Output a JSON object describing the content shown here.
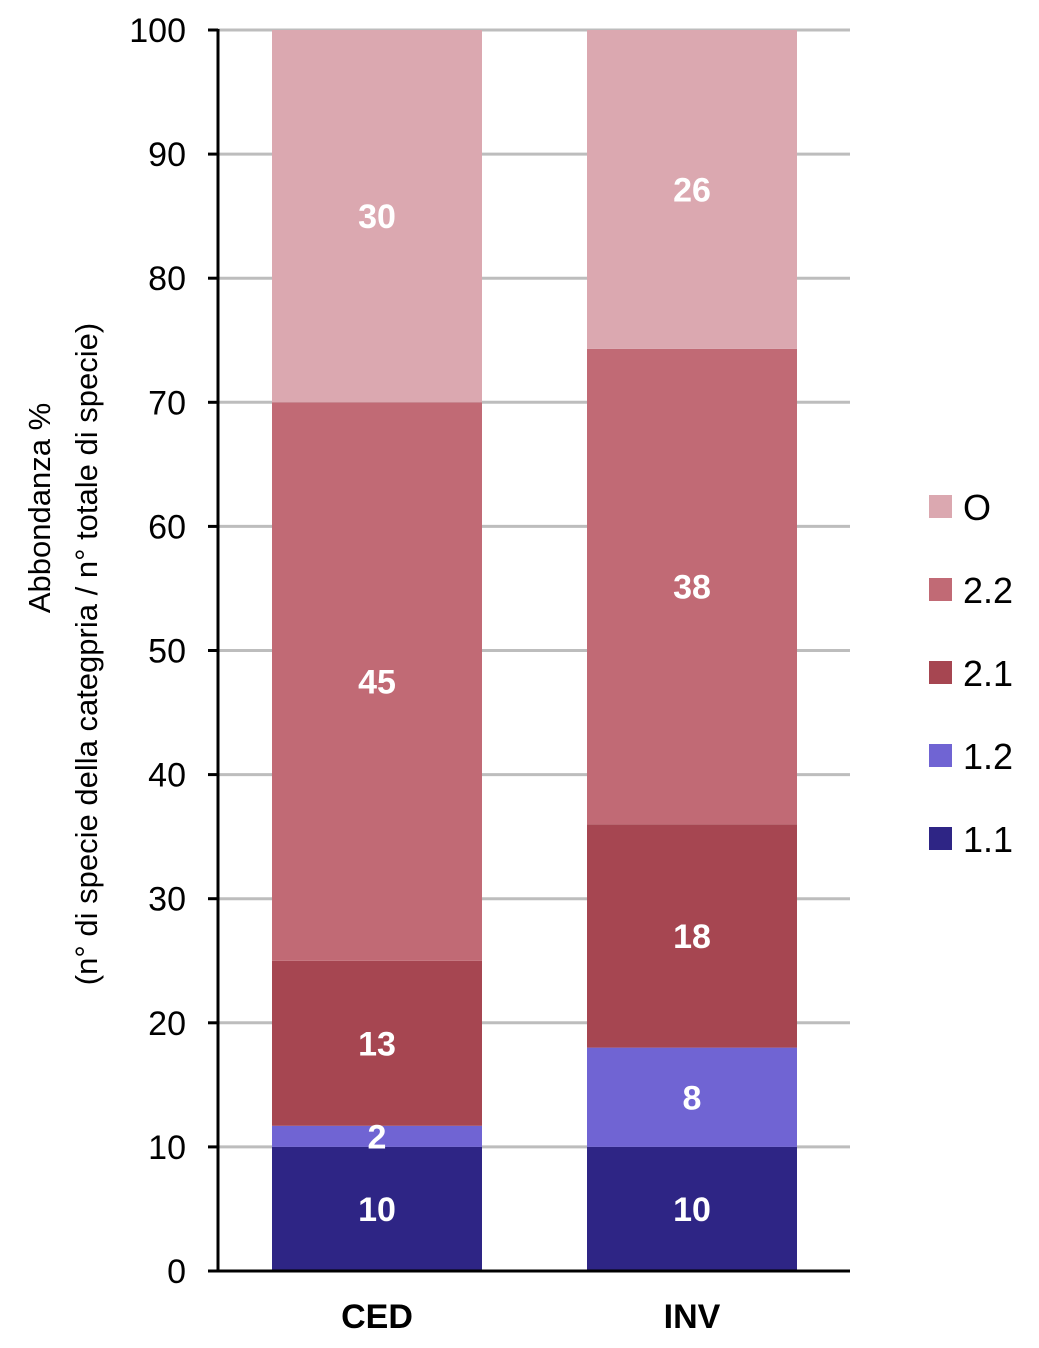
{
  "chart_data": {
    "type": "bar",
    "stacked": true,
    "title": "",
    "xlabel": "",
    "ylabel": "Abbondanza %",
    "ylabel_line2": "(n° di specie della categpria / n° totale di specie)",
    "ylim": [
      0,
      100
    ],
    "yticks": [
      0,
      10,
      20,
      30,
      40,
      50,
      60,
      70,
      80,
      90,
      100
    ],
    "grid": true,
    "legend_position": "right",
    "categories": [
      "CED",
      "INV"
    ],
    "series": [
      {
        "name": "1.1",
        "color": "#2e2585",
        "values": [
          10,
          10
        ],
        "labels": [
          "10",
          "10"
        ]
      },
      {
        "name": "1.2",
        "color": "#7064d3",
        "values": [
          1.7,
          8
        ],
        "labels": [
          "2",
          "8"
        ]
      },
      {
        "name": "2.1",
        "color": "#a64651",
        "values": [
          13.3,
          18
        ],
        "labels": [
          "13",
          "18"
        ]
      },
      {
        "name": "2.2",
        "color": "#c16a75",
        "values": [
          45,
          38.3
        ],
        "labels": [
          "45",
          "38"
        ]
      },
      {
        "name": "O",
        "color": "#dba8b0",
        "values": [
          30,
          25.7
        ],
        "labels": [
          "30",
          "26"
        ]
      }
    ],
    "legend_order": [
      "O",
      "2.2",
      "2.1",
      "1.2",
      "1.1"
    ]
  }
}
